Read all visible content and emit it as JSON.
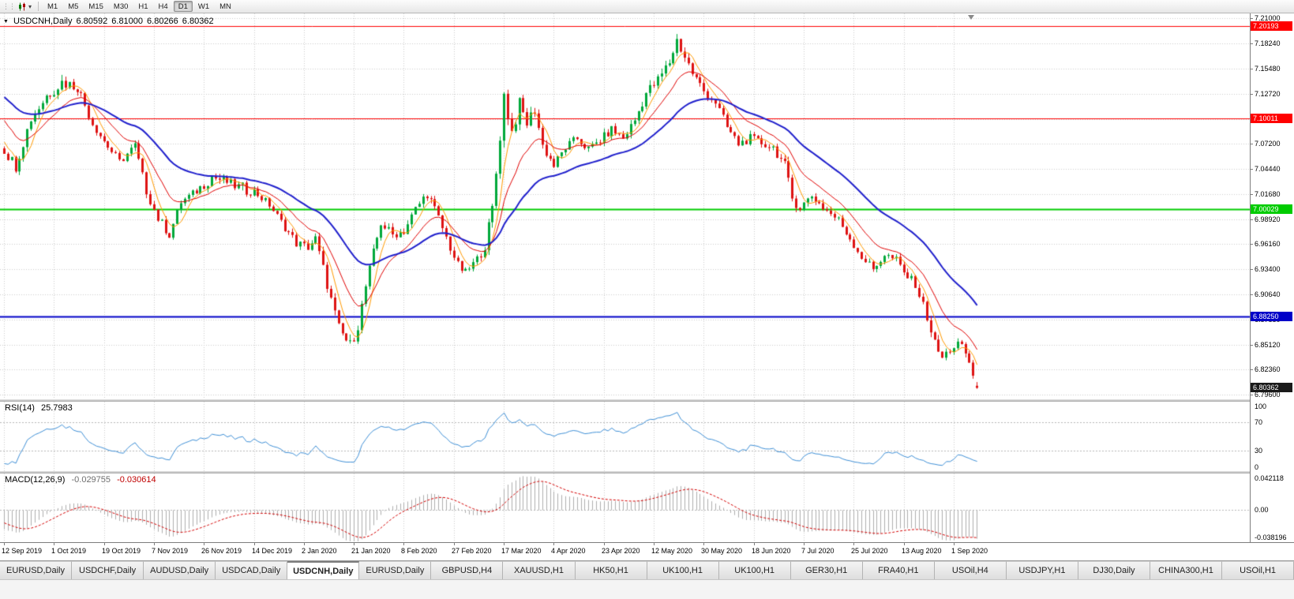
{
  "toolbar": {
    "icons": [
      "toolbar-grip",
      "chart-type-icon",
      "chart-type-dropdown-icon"
    ],
    "timeframes": [
      {
        "label": "M1"
      },
      {
        "label": "M5"
      },
      {
        "label": "M15"
      },
      {
        "label": "M30"
      },
      {
        "label": "H1"
      },
      {
        "label": "H4"
      },
      {
        "label": "D1",
        "active": true
      },
      {
        "label": "W1"
      },
      {
        "label": "MN"
      }
    ]
  },
  "tabs": [
    {
      "label": "EURUSD,Daily"
    },
    {
      "label": "USDCHF,Daily"
    },
    {
      "label": "AUDUSD,Daily"
    },
    {
      "label": "USDCAD,Daily"
    },
    {
      "label": "USDCNH,Daily",
      "active": true
    },
    {
      "label": "EURUSD,Daily"
    },
    {
      "label": "GBPUSD,H4"
    },
    {
      "label": "XAUUSD,H1"
    },
    {
      "label": "HK50,H1"
    },
    {
      "label": "UK100,H1"
    },
    {
      "label": "UK100,H1"
    },
    {
      "label": "GER30,H1"
    },
    {
      "label": "FRA40,H1"
    },
    {
      "label": "USOil,H4"
    },
    {
      "label": "USDJPY,H1"
    },
    {
      "label": "DJ30,Daily"
    },
    {
      "label": "CHINA300,H1"
    },
    {
      "label": "USOil,H1"
    }
  ],
  "chart_data": {
    "type": "candlestick",
    "symbol": "USDCNH",
    "period": "Daily",
    "title": {
      "symbol": "USDCNH,Daily",
      "ohlc": [
        "6.80592",
        "6.81000",
        "6.80266",
        "6.80362"
      ]
    },
    "price_min": 6.791,
    "price_max": 7.2155,
    "price_ticks": [
      "7.21000",
      "7.18240",
      "7.15480",
      "7.12720",
      "7.09960",
      "7.07200",
      "7.04440",
      "7.01680",
      "6.98920",
      "6.96160",
      "6.93400",
      "6.90640",
      "6.87880",
      "6.85120",
      "6.82360",
      "6.79600"
    ],
    "dates": [
      "12 Sep 2019",
      "1 Oct 2019",
      "19 Oct 2019",
      "7 Nov 2019",
      "26 Nov 2019",
      "14 Dec 2019",
      "2 Jan 2020",
      "21 Jan 2020",
      "8 Feb 2020",
      "27 Feb 2020",
      "17 Mar 2020",
      "4 Apr 2020",
      "23 Apr 2020",
      "12 May 2020",
      "30 May 2020",
      "18 Jun 2020",
      "7 Jul 2020",
      "25 Jul 2020",
      "13 Aug 2020",
      "1 Sep 2020"
    ],
    "levels": [
      {
        "price": 7.20193,
        "label": "7.20193",
        "color": "#FF0000",
        "width": 1
      },
      {
        "price": 7.10011,
        "label": "7.10011",
        "color": "#FF0000",
        "width": 1
      },
      {
        "price": 7.00029,
        "label": "7.00029",
        "color": "#00CC00",
        "width": 2
      },
      {
        "price": 6.8825,
        "label": "6.88250",
        "color": "#0000C8",
        "width": 2
      }
    ],
    "current": {
      "price": 6.80362,
      "label": "6.80362",
      "badge_color": "#1a1a1a"
    },
    "bull_color": "#00A83A",
    "bear_color": "#DE1212",
    "moving_averages": [
      {
        "type": "sma",
        "period": 5,
        "color": "#FF9900",
        "width": 1
      },
      {
        "type": "ema",
        "period": 13,
        "color": "#E00000",
        "width": 1
      },
      {
        "type": "ema",
        "period": 34,
        "color": "#2020CC",
        "width": 2
      }
    ],
    "indicators": {
      "rsi": {
        "label": "RSI(14)",
        "period": 14,
        "value": "25.7983",
        "scale": [
          100,
          70,
          30,
          0
        ],
        "levels": [
          70,
          30
        ],
        "color": "#3E8FD6"
      },
      "macd": {
        "label": "MACD(12,26,9)",
        "fast": 12,
        "slow": 26,
        "signal_period": 9,
        "value": "-0.029755",
        "signal_value": "-0.030614",
        "scale": [
          "0.042118",
          "0.00",
          "-0.038196"
        ],
        "range": [
          -0.038196,
          0.042118
        ],
        "hist_color": "#ADADAD",
        "signal_color": "#D40000"
      }
    },
    "visible_bars": 254,
    "preroll": 60,
    "bars_total": 314,
    "last_candle": {
      "o": 6.80592,
      "h": 6.81,
      "l": 6.80266,
      "c": 6.80362
    },
    "keyframes": [
      [
        0,
        7.09,
        0.006
      ],
      [
        12,
        7.12,
        0.006
      ],
      [
        26,
        7.155,
        0.007
      ],
      [
        40,
        7.19,
        0.007
      ],
      [
        48,
        7.14,
        0.008
      ],
      [
        54,
        7.1,
        0.009
      ],
      [
        60,
        7.065,
        0.01
      ],
      [
        63,
        7.048,
        0.011
      ],
      [
        67,
        7.1,
        0.011
      ],
      [
        71,
        7.125,
        0.012
      ],
      [
        75,
        7.14,
        0.012
      ],
      [
        79,
        7.135,
        0.011
      ],
      [
        83,
        7.095,
        0.009
      ],
      [
        86,
        7.075,
        0.008
      ],
      [
        90,
        7.052,
        0.008
      ],
      [
        94,
        7.07,
        0.008
      ],
      [
        97,
        7.02,
        0.008
      ],
      [
        100,
        6.99,
        0.009
      ],
      [
        103,
        6.972,
        0.008
      ],
      [
        106,
        7.008,
        0.007
      ],
      [
        110,
        7.02,
        0.007
      ],
      [
        114,
        7.036,
        0.013
      ],
      [
        118,
        7.03,
        0.007
      ],
      [
        122,
        7.022,
        0.013
      ],
      [
        125,
        7.02,
        0.007
      ],
      [
        129,
        7.005,
        0.007
      ],
      [
        133,
        6.98,
        0.007
      ],
      [
        136,
        6.963,
        0.009
      ],
      [
        139,
        6.958,
        0.007
      ],
      [
        141,
        6.968,
        0.007
      ],
      [
        143,
        6.935,
        0.009
      ],
      [
        145,
        6.9,
        0.011
      ],
      [
        147,
        6.868,
        0.013
      ],
      [
        150,
        6.85,
        0.012
      ],
      [
        152,
        6.872,
        0.01
      ],
      [
        154,
        6.915,
        0.01
      ],
      [
        156,
        6.952,
        0.009
      ],
      [
        158,
        6.985,
        0.009
      ],
      [
        161,
        6.972,
        0.008
      ],
      [
        164,
        6.976,
        0.008
      ],
      [
        167,
        7.0,
        0.009
      ],
      [
        170,
        7.018,
        0.01
      ],
      [
        173,
        6.99,
        0.009
      ],
      [
        176,
        6.958,
        0.009
      ],
      [
        178,
        6.938,
        0.009
      ],
      [
        180,
        6.93,
        0.008
      ],
      [
        183,
        6.945,
        0.008
      ],
      [
        185,
        6.96,
        0.01
      ],
      [
        187,
        7.0,
        0.014
      ],
      [
        188,
        7.04,
        0.016
      ],
      [
        190,
        7.125,
        0.016
      ],
      [
        192,
        7.085,
        0.014
      ],
      [
        194,
        7.115,
        0.013
      ],
      [
        196,
        7.095,
        0.012
      ],
      [
        198,
        7.11,
        0.011
      ],
      [
        200,
        7.07,
        0.01
      ],
      [
        203,
        7.048,
        0.009
      ],
      [
        206,
        7.068,
        0.008
      ],
      [
        209,
        7.078,
        0.008
      ],
      [
        212,
        7.066,
        0.008
      ],
      [
        215,
        7.076,
        0.008
      ],
      [
        218,
        7.088,
        0.008
      ],
      [
        221,
        7.078,
        0.008
      ],
      [
        224,
        7.098,
        0.009
      ],
      [
        227,
        7.128,
        0.01
      ],
      [
        230,
        7.142,
        0.01
      ],
      [
        233,
        7.162,
        0.011
      ],
      [
        235,
        7.186,
        0.011
      ],
      [
        237,
        7.168,
        0.011
      ],
      [
        239,
        7.15,
        0.01
      ],
      [
        242,
        7.13,
        0.009
      ],
      [
        245,
        7.118,
        0.009
      ],
      [
        248,
        7.09,
        0.009
      ],
      [
        251,
        7.072,
        0.008
      ],
      [
        254,
        7.078,
        0.008
      ],
      [
        257,
        7.073,
        0.008
      ],
      [
        260,
        7.068,
        0.008
      ],
      [
        263,
        7.048,
        0.009
      ],
      [
        265,
        7.012,
        0.01
      ],
      [
        267,
        7.002,
        0.009
      ],
      [
        270,
        7.015,
        0.008
      ],
      [
        273,
        7.002,
        0.008
      ],
      [
        277,
        6.988,
        0.008
      ],
      [
        280,
        6.968,
        0.008
      ],
      [
        283,
        6.948,
        0.009
      ],
      [
        286,
        6.934,
        0.008
      ],
      [
        289,
        6.95,
        0.008
      ],
      [
        292,
        6.944,
        0.008
      ],
      [
        294,
        6.93,
        0.008
      ],
      [
        297,
        6.918,
        0.008
      ],
      [
        300,
        6.882,
        0.01
      ],
      [
        302,
        6.852,
        0.01
      ],
      [
        304,
        6.836,
        0.01
      ],
      [
        306,
        6.846,
        0.009
      ],
      [
        308,
        6.852,
        0.009
      ],
      [
        310,
        6.842,
        0.009
      ],
      [
        312,
        6.818,
        0.01
      ],
      [
        313,
        6.806,
        0.01
      ]
    ]
  }
}
